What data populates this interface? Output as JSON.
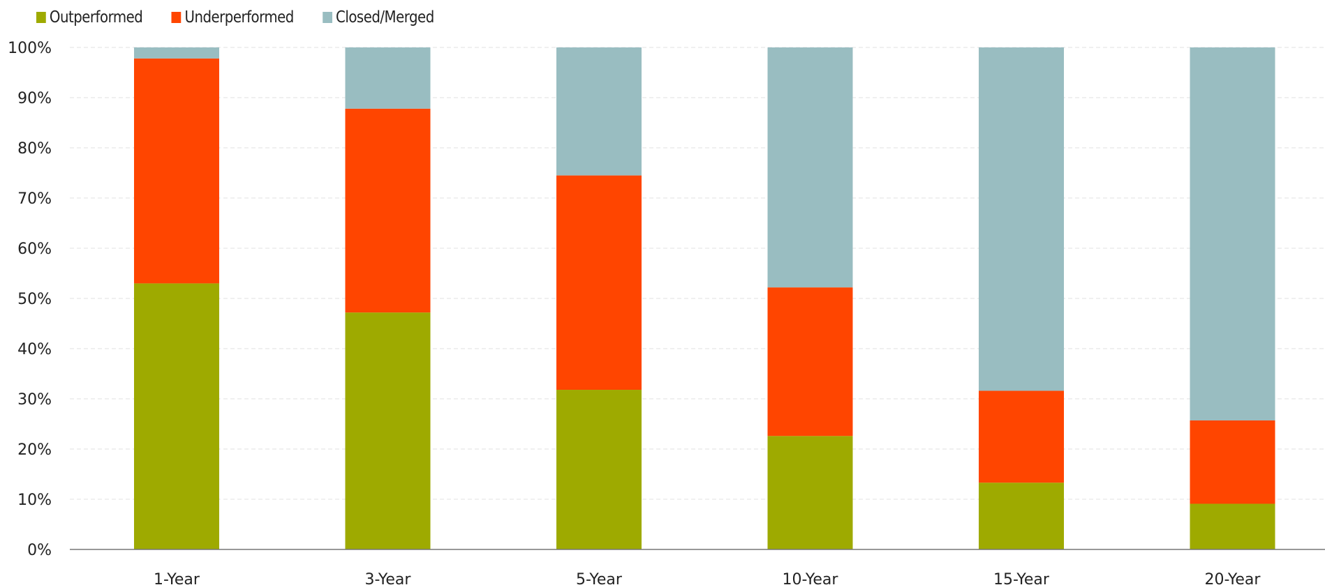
{
  "chart_data": {
    "type": "bar",
    "stacked": true,
    "categories": [
      "1-Year",
      "3-Year",
      "5-Year",
      "10-Year",
      "15-Year",
      "20-Year"
    ],
    "series": [
      {
        "name": "Outperformed",
        "color": "#9eaa00",
        "values": [
          53,
          47.2,
          31.8,
          22.6,
          13.3,
          9.1
        ]
      },
      {
        "name": "Underperformed",
        "color": "#ff4500",
        "values": [
          44.8,
          40.6,
          42.7,
          29.6,
          18.3,
          16.6
        ]
      },
      {
        "name": "Closed/Merged",
        "color": "#99bdc1",
        "values": [
          2.2,
          12.2,
          25.5,
          47.8,
          68.4,
          74.3
        ]
      }
    ],
    "ylim": [
      0,
      100
    ],
    "yticks": [
      "0%",
      "10%",
      "20%",
      "30%",
      "40%",
      "50%",
      "60%",
      "70%",
      "80%",
      "90%",
      "100%"
    ],
    "grid": true,
    "legend_position": "top-left"
  }
}
